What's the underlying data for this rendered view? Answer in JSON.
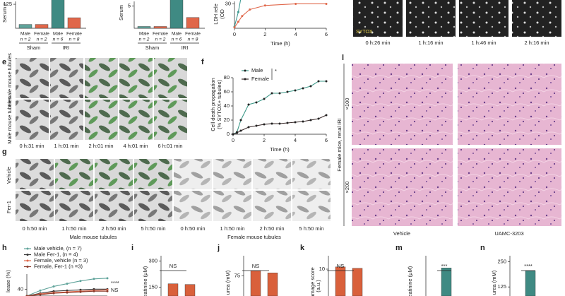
{
  "top": {
    "bars1": {
      "type": "bar",
      "ylabel": "Serum c",
      "ylim": [
        0,
        140
      ],
      "yticks": [
        125
      ],
      "categories": [
        "Male",
        "Female",
        "Male",
        "Female"
      ],
      "n_labels": [
        "n = 2",
        "n = 2",
        "n = 6",
        "n = 8"
      ],
      "groups": [
        "Sham",
        "IRI"
      ],
      "values": [
        20,
        20,
        160,
        55
      ],
      "colors": [
        "#5fa39a",
        "#e0674a",
        "#3f8a83",
        "#e0674a"
      ]
    },
    "bars2": {
      "type": "bar",
      "ylabel": "Serum",
      "ylim": [
        0,
        6
      ],
      "yticks": [
        5
      ],
      "categories": [
        "Male",
        "Female",
        "Male",
        "Female"
      ],
      "n_labels": [
        "n = 2",
        "n = 2",
        "n = 6",
        "n = 8"
      ],
      "groups": [
        "Sham",
        "IRI"
      ],
      "values": [
        0.4,
        0.4,
        7,
        2.4
      ],
      "colors": [
        "#5fa39a",
        "#e0674a",
        "#3f8a83",
        "#e0674a"
      ]
    },
    "ldh": {
      "type": "line",
      "ylabel": "LDH rele",
      "yunit": "(OD",
      "xlabel": "Time (h)",
      "x": [
        0,
        0.25,
        0.5,
        1,
        2,
        4,
        6
      ],
      "xlim": [
        0,
        6
      ],
      "xticks": [
        0,
        2,
        4,
        6
      ],
      "ylim": [
        0,
        33
      ],
      "yticks": [
        30
      ],
      "series": [
        {
          "color": "#3f9a92",
          "values": [
            2,
            20,
            45,
            null,
            null,
            null,
            null
          ]
        },
        {
          "color": "#e0674a",
          "values": [
            1,
            8,
            15,
            23,
            28,
            30,
            30
          ]
        }
      ]
    },
    "sytox": {
      "label": "SYTOX",
      "times": [
        "0 h:26 min",
        "1 h:16 min",
        "1 h:46 min",
        "2 h:16 min"
      ]
    }
  },
  "e": {
    "letter": "e",
    "rows": [
      "Female mouse tubules",
      "Male mouse tubules"
    ],
    "times": [
      "0 h:31 min",
      "1 h:01 min",
      "2 h:01 min",
      "4 h:01 min",
      "6 h:01 min"
    ]
  },
  "f": {
    "type": "line",
    "letter": "f",
    "ylabel": "Cell death propagation",
    "yunit": "(% SYTOX+ tubules)",
    "xlabel": "Time (h)",
    "annotation": "*",
    "x": [
      0,
      0.25,
      0.5,
      1,
      1.5,
      2,
      2.5,
      3,
      3.5,
      4,
      4.5,
      5,
      5.5,
      6
    ],
    "xlim": [
      0,
      6
    ],
    "xticks": [
      0,
      2,
      4,
      6
    ],
    "ylim": [
      0,
      80
    ],
    "yticks": [
      0,
      20,
      40,
      60,
      80
    ],
    "series": [
      {
        "name": "Male",
        "color": "#3f9a8a",
        "values": [
          0,
          3,
          20,
          42,
          45,
          50,
          58,
          58,
          60,
          62,
          65,
          68,
          75,
          75
        ]
      },
      {
        "name": "Female",
        "color": "#3a2a2a",
        "values": [
          0,
          2,
          5,
          10,
          12,
          14,
          15,
          15,
          16,
          17,
          18,
          20,
          22,
          27
        ]
      }
    ]
  },
  "g": {
    "letter": "g",
    "rows": [
      "Vehicle",
      "Fer-1"
    ],
    "times": [
      "0 h:50 min",
      "1 h:50 min",
      "2 h:50 min",
      "5 h:50 min",
      "0 h:50 min",
      "1 h:50 min",
      "2 h:50 min",
      "5 h:50 min"
    ],
    "groups": [
      "Male mouse tubules",
      "Female mouse tubules"
    ]
  },
  "l": {
    "letter": "l",
    "side": "Female mice, renal IRI",
    "mags": [
      "×100",
      "×200"
    ],
    "cols": [
      "Vehicle",
      "UAMC-3203"
    ]
  },
  "h": {
    "type": "line",
    "letter": "h",
    "ylabel": "lease (%)",
    "annotations": [
      "****",
      "NS"
    ],
    "x": [
      0,
      1,
      2,
      3,
      4,
      5,
      6
    ],
    "xlim": [
      0,
      6
    ],
    "ylim": [
      30,
      62
    ],
    "yticks": [
      40
    ],
    "series": [
      {
        "name": "Male vehicle, (n = 7)",
        "color": "#5fa39a",
        "values": [
          30,
          38,
          44,
          48,
          52,
          55,
          56
        ]
      },
      {
        "name": "Male Fer-1, (n = 4)",
        "color": "#333333",
        "values": [
          30,
          34,
          37,
          38,
          39,
          40,
          40
        ]
      },
      {
        "name": "Female, vehicle (n = 3)",
        "color": "#e0674a",
        "values": [
          30,
          33,
          35,
          36,
          37,
          38,
          39
        ]
      },
      {
        "name": "Female, Fer-1 (n =3)",
        "color": "#8a3a2a",
        "values": [
          30,
          32,
          34,
          35,
          36,
          37,
          37
        ]
      }
    ]
  },
  "small": [
    {
      "type": "bar",
      "letter": "i",
      "ylabel": "reatinine (μM)",
      "annotation": "NS",
      "ylim": [
        100,
        330
      ],
      "yticks": [
        150,
        300
      ],
      "values": [
        170,
        166
      ],
      "color": "#d9603b"
    },
    {
      "type": "bar",
      "letter": "j",
      "ylabel": "urea (mM)",
      "annotation": "NS",
      "ylim": [
        55,
        95
      ],
      "yticks": [
        75
      ],
      "values": [
        80,
        78
      ],
      "color": "#d9603b"
    },
    {
      "type": "bar",
      "letter": "k",
      "ylabel": "amage score",
      "yunit": "(a.u.)",
      "annotation": "NS",
      "ylim": [
        4,
        13
      ],
      "yticks": [
        10
      ],
      "values": [
        10.5,
        10.2
      ],
      "color": "#d9603b"
    },
    {
      "type": "bar",
      "letter": "m",
      "ylabel": "reatinine (μM)",
      "annotation": "***",
      "ylim": [
        0,
        330
      ],
      "values": [
        230
      ],
      "color": "#3f8a83"
    },
    {
      "type": "bar",
      "letter": "n",
      "ylabel": "urea (mM)",
      "annotation": "****",
      "ylim": [
        80,
        280
      ],
      "yticks": [
        125,
        250
      ],
      "values": [
        205
      ],
      "color": "#3f8a83"
    }
  ]
}
